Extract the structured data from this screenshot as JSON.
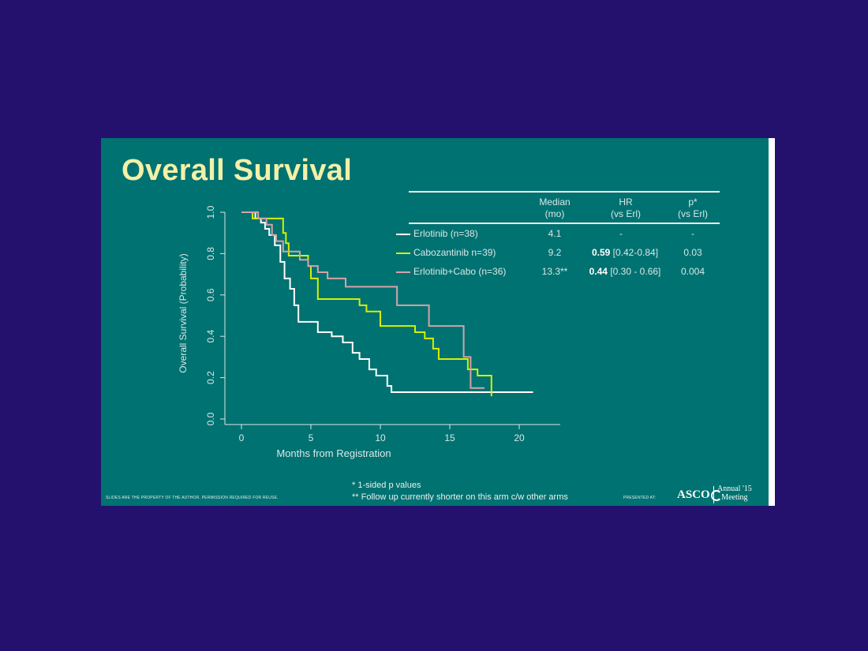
{
  "slide": {
    "title": "Overall Survival",
    "footer_left": "SLIDES ARE THE PROPERTY OF THE AUTHOR. PERMISSION REQUIRED FOR REUSE.",
    "footnote_1": "* 1-sided p values",
    "footnote_2": "** Follow up currently shorter on this arm c/w other arms",
    "presented_at": "PRESENTED AT:",
    "logo_text": "ASCO",
    "meeting_line1": "Annual '15",
    "meeting_line2": "Meeting"
  },
  "table": {
    "headers": {
      "median_1": "Median",
      "median_2": "(mo)",
      "hr_1": "HR",
      "hr_2": "(vs Erl)",
      "p_1": "p*",
      "p_2": "(vs Erl)"
    },
    "rows": [
      {
        "label": "Erlotinib (n=38)",
        "median": "4.1",
        "hr_bold": "",
        "hr_ci": "-",
        "p": "-",
        "color": "#ffffff"
      },
      {
        "label": "Cabozantinib n=39)",
        "median": "9.2",
        "hr_bold": "0.59",
        "hr_ci": "[0.42-0.84]",
        "p": "0.03",
        "color": "#d4f000"
      },
      {
        "label": "Erlotinib+Cabo (n=36)",
        "median": "13.3**",
        "hr_bold": "0.44",
        "hr_ci": "[0.30 - 0.66]",
        "p": "0.004",
        "color": "#d3a3aa"
      }
    ]
  },
  "chart_data": {
    "type": "line",
    "xlabel": "Months from Registration",
    "ylabel": "Overall Survival (Probability)",
    "xlim": [
      0,
      20
    ],
    "ylim": [
      0,
      1
    ],
    "xticks": [
      0,
      5,
      10,
      15,
      20
    ],
    "yticks": [
      "0.0",
      "0.2",
      "0.4",
      "0.6",
      "0.8",
      "1.0"
    ],
    "grid": false,
    "step": true,
    "series": [
      {
        "name": "Erlotinib (n=38)",
        "color": "#ffffff",
        "x": [
          0,
          1.0,
          1.4,
          1.7,
          2.0,
          2.4,
          2.8,
          3.1,
          3.5,
          3.8,
          4.1,
          4.5,
          5.5,
          6.5,
          7.3,
          8.0,
          8.5,
          9.2,
          9.7,
          10.5,
          10.8,
          21.0
        ],
        "y": [
          1.0,
          0.97,
          0.95,
          0.92,
          0.89,
          0.84,
          0.76,
          0.68,
          0.63,
          0.55,
          0.47,
          0.47,
          0.42,
          0.4,
          0.37,
          0.32,
          0.29,
          0.24,
          0.21,
          0.16,
          0.13,
          0.13
        ]
      },
      {
        "name": "Cabozantinib n=39)",
        "color": "#d4f000",
        "x": [
          0,
          0.8,
          1.4,
          2.2,
          3.0,
          3.2,
          3.4,
          4.4,
          4.8,
          5.0,
          5.5,
          7.5,
          8.5,
          9.0,
          10.0,
          12.5,
          13.2,
          13.8,
          14.2,
          16.3,
          17.0,
          18.0,
          18.0
        ],
        "y": [
          1.0,
          0.97,
          0.97,
          0.97,
          0.9,
          0.85,
          0.79,
          0.79,
          0.74,
          0.68,
          0.58,
          0.58,
          0.55,
          0.52,
          0.45,
          0.42,
          0.39,
          0.34,
          0.29,
          0.24,
          0.21,
          0.18,
          0.11
        ]
      },
      {
        "name": "Erlotinib+Cabo (n=36)",
        "color": "#d3a3aa",
        "x": [
          0,
          1.2,
          1.8,
          2.2,
          2.5,
          3.0,
          4.2,
          4.8,
          5.5,
          6.2,
          7.5,
          11.0,
          11.2,
          12.5,
          13.5,
          15.7,
          16.0,
          16.5,
          17.5
        ],
        "y": [
          1.0,
          0.97,
          0.94,
          0.89,
          0.86,
          0.81,
          0.77,
          0.74,
          0.71,
          0.68,
          0.64,
          0.64,
          0.55,
          0.55,
          0.45,
          0.45,
          0.3,
          0.15,
          0.15
        ]
      }
    ]
  }
}
